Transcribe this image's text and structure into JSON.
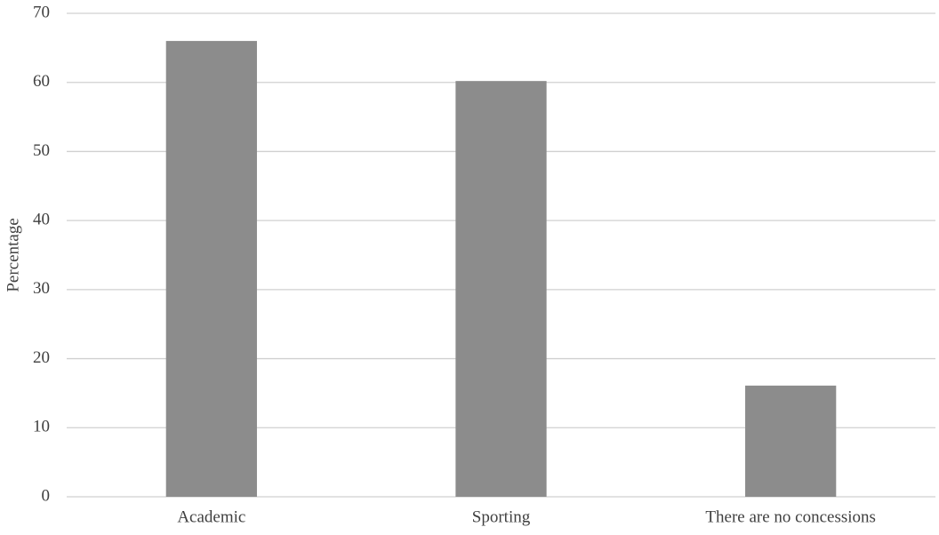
{
  "chart_data": {
    "type": "bar",
    "y_label": "Percentage",
    "categories": [
      "Academic",
      "Sporting",
      "There are no concessions"
    ],
    "values": [
      66,
      60.2,
      16.1
    ],
    "color": "#8c8c8c",
    "ylim": [
      0,
      70
    ],
    "yticks": [
      0,
      10,
      20,
      30,
      40,
      50,
      60,
      70
    ],
    "grid": true
  }
}
